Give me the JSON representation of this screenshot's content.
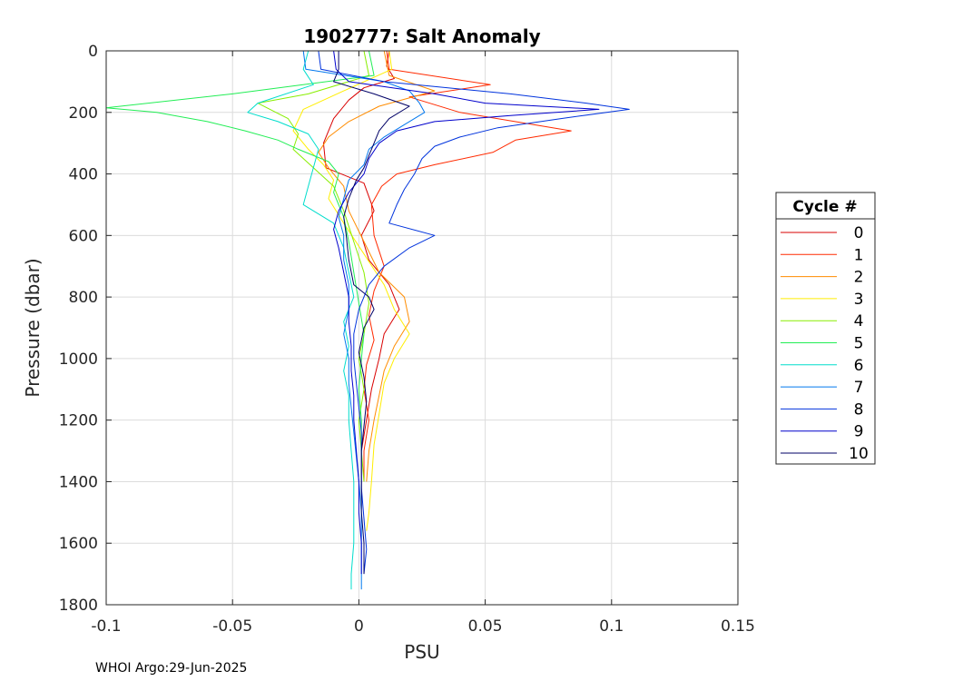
{
  "chart_data": {
    "type": "line",
    "title": "1902777: Salt Anomaly",
    "xlabel": "PSU",
    "ylabel": "Pressure (dbar)",
    "xlim": [
      -0.1,
      0.15
    ],
    "ylim": [
      0,
      1800
    ],
    "y_reversed": true,
    "grid": true,
    "x_ticks": [
      "-0.1",
      "-0.05",
      "0",
      "0.05",
      "0.1",
      "0.15"
    ],
    "y_ticks": [
      "0",
      "200",
      "400",
      "600",
      "800",
      "1000",
      "1200",
      "1400",
      "1600",
      "1800"
    ],
    "legend": {
      "title": "Cycle #",
      "placement": "right"
    },
    "footer": "WHOI Argo:29-Jun-2025",
    "series": [
      {
        "name": "0",
        "color": "#d90000",
        "points": [
          [
            0.012,
            0
          ],
          [
            0.011,
            50
          ],
          [
            0.014,
            90
          ],
          [
            0.002,
            120
          ],
          [
            -0.004,
            160
          ],
          [
            -0.01,
            220
          ],
          [
            -0.014,
            300
          ],
          [
            -0.013,
            380
          ],
          [
            0.002,
            430
          ],
          [
            0.006,
            520
          ],
          [
            0.001,
            600
          ],
          [
            0.004,
            680
          ],
          [
            0.012,
            760
          ],
          [
            0.016,
            840
          ],
          [
            0.01,
            920
          ],
          [
            0.008,
            1000
          ],
          [
            0.005,
            1100
          ],
          [
            0.003,
            1200
          ],
          [
            0.001,
            1300
          ]
        ]
      },
      {
        "name": "1",
        "color": "#ff2a00",
        "points": [
          [
            0.011,
            0
          ],
          [
            0.012,
            60
          ],
          [
            0.052,
            110
          ],
          [
            0.02,
            150
          ],
          [
            0.04,
            200
          ],
          [
            0.084,
            260
          ],
          [
            0.062,
            290
          ],
          [
            0.053,
            330
          ],
          [
            0.03,
            370
          ],
          [
            0.015,
            400
          ],
          [
            0.009,
            440
          ],
          [
            0.005,
            500
          ],
          [
            0.006,
            600
          ],
          [
            0.01,
            700
          ],
          [
            0.006,
            780
          ],
          [
            0.004,
            860
          ],
          [
            0.006,
            940
          ],
          [
            0.003,
            1020
          ],
          [
            0.002,
            1100
          ],
          [
            0.004,
            1200
          ],
          [
            0.002,
            1300
          ],
          [
            0.002,
            1400
          ]
        ]
      },
      {
        "name": "2",
        "color": "#ff8c00",
        "points": [
          [
            0.01,
            0
          ],
          [
            0.012,
            80
          ],
          [
            0.03,
            130
          ],
          [
            0.008,
            180
          ],
          [
            -0.004,
            230
          ],
          [
            -0.012,
            280
          ],
          [
            -0.016,
            330
          ],
          [
            -0.012,
            380
          ],
          [
            -0.006,
            440
          ],
          [
            -0.004,
            520
          ],
          [
            0.002,
            620
          ],
          [
            0.008,
            720
          ],
          [
            0.018,
            800
          ],
          [
            0.02,
            880
          ],
          [
            0.014,
            960
          ],
          [
            0.01,
            1040
          ],
          [
            0.008,
            1120
          ],
          [
            0.006,
            1200
          ],
          [
            0.004,
            1300
          ],
          [
            0.003,
            1400
          ]
        ]
      },
      {
        "name": "3",
        "color": "#ffee00",
        "points": [
          [
            0.012,
            0
          ],
          [
            0.013,
            60
          ],
          [
            -0.006,
            130
          ],
          [
            -0.022,
            190
          ],
          [
            -0.026,
            260
          ],
          [
            -0.02,
            320
          ],
          [
            -0.014,
            370
          ],
          [
            -0.01,
            420
          ],
          [
            -0.012,
            480
          ],
          [
            -0.006,
            560
          ],
          [
            0.002,
            660
          ],
          [
            0.01,
            760
          ],
          [
            0.014,
            840
          ],
          [
            0.02,
            920
          ],
          [
            0.014,
            1000
          ],
          [
            0.01,
            1080
          ],
          [
            0.008,
            1180
          ],
          [
            0.006,
            1280
          ],
          [
            0.005,
            1400
          ],
          [
            0.004,
            1500
          ],
          [
            0.003,
            1560
          ]
        ]
      },
      {
        "name": "4",
        "color": "#88ee00",
        "points": [
          [
            0.002,
            0
          ],
          [
            0.004,
            80
          ],
          [
            -0.02,
            140
          ],
          [
            -0.04,
            170
          ],
          [
            -0.028,
            220
          ],
          [
            -0.024,
            270
          ],
          [
            -0.026,
            320
          ],
          [
            -0.018,
            380
          ],
          [
            -0.01,
            440
          ],
          [
            -0.006,
            520
          ],
          [
            -0.002,
            620
          ],
          [
            0.002,
            720
          ],
          [
            0.004,
            820
          ],
          [
            0.002,
            920
          ],
          [
            0.0,
            1000
          ],
          [
            0.002,
            1100
          ],
          [
            0.0,
            1200
          ],
          [
            0.001,
            1300
          ],
          [
            0.002,
            1400
          ]
        ]
      },
      {
        "name": "5",
        "color": "#22ee55",
        "points": [
          [
            0.004,
            0
          ],
          [
            0.006,
            80
          ],
          [
            -0.05,
            140
          ],
          [
            -0.1,
            185
          ],
          [
            -0.08,
            200
          ],
          [
            -0.06,
            230
          ],
          [
            -0.045,
            260
          ],
          [
            -0.032,
            290
          ],
          [
            -0.024,
            320
          ],
          [
            -0.012,
            360
          ],
          [
            -0.008,
            400
          ],
          [
            -0.01,
            460
          ],
          [
            -0.006,
            540
          ],
          [
            -0.004,
            620
          ],
          [
            -0.002,
            720
          ],
          [
            0.0,
            820
          ],
          [
            0.002,
            920
          ],
          [
            0.001,
            1000
          ],
          [
            0.0,
            1100
          ],
          [
            0.001,
            1200
          ],
          [
            0.001,
            1300
          ]
        ]
      },
      {
        "name": "6",
        "color": "#00ddcc",
        "points": [
          [
            -0.02,
            0
          ],
          [
            -0.022,
            60
          ],
          [
            -0.018,
            110
          ],
          [
            -0.04,
            170
          ],
          [
            -0.044,
            200
          ],
          [
            -0.032,
            230
          ],
          [
            -0.02,
            270
          ],
          [
            -0.016,
            320
          ],
          [
            -0.018,
            380
          ],
          [
            -0.02,
            440
          ],
          [
            -0.022,
            500
          ],
          [
            -0.01,
            560
          ],
          [
            -0.006,
            640
          ],
          [
            -0.004,
            720
          ],
          [
            -0.002,
            800
          ],
          [
            -0.006,
            880
          ],
          [
            -0.004,
            960
          ],
          [
            -0.006,
            1040
          ],
          [
            -0.004,
            1120
          ],
          [
            -0.004,
            1200
          ],
          [
            -0.003,
            1300
          ],
          [
            -0.002,
            1400
          ],
          [
            -0.002,
            1500
          ],
          [
            -0.002,
            1600
          ],
          [
            -0.003,
            1700
          ],
          [
            -0.003,
            1750
          ]
        ]
      },
      {
        "name": "7",
        "color": "#0077ee",
        "points": [
          [
            -0.022,
            0
          ],
          [
            -0.021,
            60
          ],
          [
            0.01,
            100
          ],
          [
            0.02,
            130
          ],
          [
            0.024,
            170
          ],
          [
            0.026,
            200
          ],
          [
            0.018,
            240
          ],
          [
            0.01,
            280
          ],
          [
            0.004,
            320
          ],
          [
            0.002,
            370
          ],
          [
            -0.004,
            420
          ],
          [
            -0.006,
            480
          ],
          [
            -0.008,
            540
          ],
          [
            -0.006,
            600
          ],
          [
            -0.006,
            680
          ],
          [
            -0.004,
            760
          ],
          [
            -0.004,
            840
          ],
          [
            -0.006,
            920
          ],
          [
            -0.004,
            1000
          ],
          [
            -0.004,
            1080
          ],
          [
            -0.003,
            1160
          ],
          [
            -0.002,
            1240
          ],
          [
            -0.001,
            1320
          ],
          [
            0.0,
            1400
          ],
          [
            0.001,
            1500
          ],
          [
            0.001,
            1600
          ],
          [
            0.001,
            1700
          ],
          [
            0.001,
            1750
          ]
        ]
      },
      {
        "name": "8",
        "color": "#0033dd",
        "points": [
          [
            -0.016,
            0
          ],
          [
            -0.015,
            60
          ],
          [
            0.01,
            100
          ],
          [
            0.06,
            140
          ],
          [
            0.09,
            170
          ],
          [
            0.107,
            190
          ],
          [
            0.08,
            220
          ],
          [
            0.055,
            250
          ],
          [
            0.04,
            280
          ],
          [
            0.03,
            310
          ],
          [
            0.025,
            350
          ],
          [
            0.022,
            400
          ],
          [
            0.018,
            450
          ],
          [
            0.015,
            500
          ],
          [
            0.012,
            560
          ],
          [
            0.03,
            600
          ],
          [
            0.02,
            640
          ],
          [
            0.01,
            700
          ],
          [
            0.004,
            760
          ],
          [
            0.0,
            840
          ],
          [
            -0.002,
            920
          ],
          [
            -0.002,
            1000
          ],
          [
            -0.001,
            1080
          ],
          [
            0.0,
            1160
          ],
          [
            0.001,
            1240
          ],
          [
            0.001,
            1320
          ],
          [
            0.001,
            1420
          ],
          [
            0.002,
            1520
          ],
          [
            0.003,
            1620
          ],
          [
            0.002,
            1700
          ]
        ]
      },
      {
        "name": "9",
        "color": "#0000cc",
        "points": [
          [
            -0.01,
            0
          ],
          [
            -0.009,
            60
          ],
          [
            -0.004,
            100
          ],
          [
            0.03,
            140
          ],
          [
            0.05,
            170
          ],
          [
            0.095,
            190
          ],
          [
            0.06,
            210
          ],
          [
            0.03,
            230
          ],
          [
            0.015,
            260
          ],
          [
            0.008,
            300
          ],
          [
            0.004,
            350
          ],
          [
            0.002,
            400
          ],
          [
            -0.004,
            460
          ],
          [
            -0.008,
            520
          ],
          [
            -0.01,
            580
          ],
          [
            -0.008,
            640
          ],
          [
            -0.006,
            720
          ],
          [
            -0.004,
            800
          ],
          [
            -0.004,
            880
          ],
          [
            -0.003,
            960
          ],
          [
            -0.003,
            1040
          ],
          [
            -0.002,
            1120
          ],
          [
            -0.002,
            1200
          ],
          [
            -0.001,
            1300
          ],
          [
            0.0,
            1400
          ],
          [
            0.0,
            1500
          ],
          [
            0.001,
            1600
          ],
          [
            0.001,
            1700
          ]
        ]
      },
      {
        "name": "10",
        "color": "#000066",
        "points": [
          [
            -0.008,
            0
          ],
          [
            -0.008,
            60
          ],
          [
            -0.01,
            100
          ],
          [
            0.006,
            140
          ],
          [
            0.02,
            180
          ],
          [
            0.012,
            220
          ],
          [
            0.008,
            260
          ],
          [
            0.006,
            300
          ],
          [
            0.004,
            340
          ],
          [
            0.002,
            380
          ],
          [
            -0.001,
            420
          ],
          [
            -0.004,
            480
          ],
          [
            -0.006,
            540
          ],
          [
            -0.005,
            600
          ],
          [
            -0.004,
            680
          ],
          [
            -0.002,
            760
          ],
          [
            0.004,
            800
          ],
          [
            0.006,
            840
          ],
          [
            0.002,
            900
          ],
          [
            0.0,
            980
          ],
          [
            0.002,
            1060
          ],
          [
            0.003,
            1140
          ],
          [
            0.002,
            1220
          ],
          [
            0.001,
            1300
          ],
          [
            0.001,
            1400
          ],
          [
            0.001,
            1500
          ],
          [
            0.002,
            1600
          ],
          [
            0.002,
            1700
          ]
        ]
      }
    ]
  }
}
